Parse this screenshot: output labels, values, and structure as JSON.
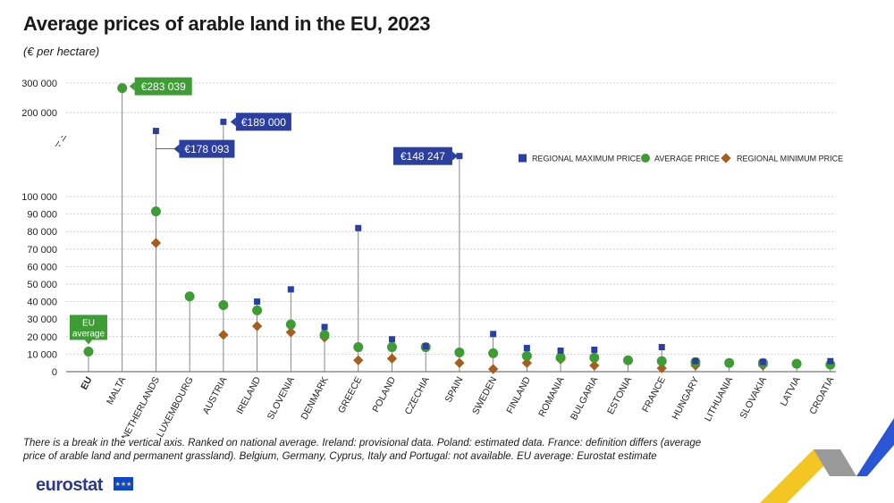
{
  "title": "Average prices of arable land in the EU, 2023",
  "subtitle": "(€ per hectare)",
  "footnote": "There is a break in the vertical axis. Ranked on national average. Ireland: provisional data. Poland: estimated data. France: definition differs (average price of arable land and permanent grassland). Belgium, Germany, Cyprus, Italy and Portugal: not available. EU average: Eurostat estimate",
  "brand": "eurostat",
  "colors": {
    "max": "#2a3fa0",
    "avg": "#3e9c35",
    "min": "#a65e1f",
    "grid": "#c4c4c4",
    "deco_yellow": "#f3c623",
    "deco_blue": "#2a55d4",
    "deco_grey": "#9a9a9a"
  },
  "chart_data": {
    "type": "scatter",
    "title": "Average prices of arable land in the EU, 2023",
    "unit": "€ per hectare",
    "y_axis_break": true,
    "ylim_lower": [
      0,
      100000
    ],
    "ylim_upper": [
      200000,
      300000
    ],
    "y_ticks_lower": [
      "0",
      "10 000",
      "20 000",
      "30 000",
      "40 000",
      "50 000",
      "60 000",
      "70 000",
      "80 000",
      "90 000",
      "100 000"
    ],
    "y_ticks_upper": [
      "200 000",
      "300 000"
    ],
    "categories": [
      "EU",
      "MALTA",
      "NETHERLANDS",
      "LUXEMBOURG",
      "AUSTRIA",
      "IRELAND",
      "SLOVENIA",
      "DENMARK",
      "GREECE",
      "POLAND",
      "CZECHIA",
      "SPAIN",
      "SWEDEN",
      "FINLAND",
      "ROMANIA",
      "BULGARIA",
      "ESTONIA",
      "FRANCE",
      "HUNGARY",
      "LITHUANIA",
      "SLOVAKIA",
      "LATVIA",
      "CROATIA"
    ],
    "series": [
      {
        "name": "REGIONAL MAXIMUM PRICE",
        "marker": "square",
        "values": [
          null,
          null,
          178093,
          null,
          189000,
          40000,
          47000,
          25500,
          82000,
          18500,
          14500,
          148247,
          21500,
          13500,
          12000,
          12500,
          null,
          14000,
          6000,
          null,
          5500,
          null,
          6000
        ]
      },
      {
        "name": "AVERAGE PRICE",
        "marker": "circle",
        "values": [
          11500,
          283039,
          91500,
          43000,
          38000,
          35000,
          27000,
          21000,
          14000,
          14000,
          14000,
          11000,
          10500,
          9000,
          8000,
          8000,
          6500,
          6000,
          5500,
          5000,
          5000,
          4500,
          4000
        ]
      },
      {
        "name": "REGIONAL MINIMUM PRICE",
        "marker": "diamond",
        "values": [
          null,
          null,
          73500,
          null,
          21000,
          26000,
          22500,
          19500,
          6500,
          7500,
          null,
          5000,
          1500,
          5000,
          7000,
          3500,
          null,
          2000,
          3500,
          null,
          3500,
          null,
          null
        ]
      }
    ],
    "callouts": [
      {
        "category": "MALTA",
        "series": "AVERAGE PRICE",
        "label": "€283 039"
      },
      {
        "category": "NETHERLANDS",
        "series": "REGIONAL MAXIMUM PRICE",
        "label": "€178 093"
      },
      {
        "category": "AUSTRIA",
        "series": "REGIONAL MAXIMUM PRICE",
        "label": "€189 000"
      },
      {
        "category": "SPAIN",
        "series": "REGIONAL MAXIMUM PRICE",
        "label": "€148 247"
      }
    ],
    "eu_label": [
      "EU",
      "average"
    ],
    "legend_position": "right, above plot"
  }
}
